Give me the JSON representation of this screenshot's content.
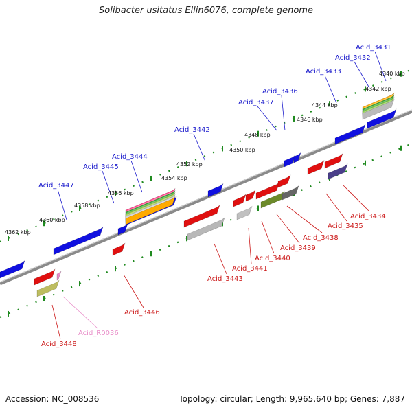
{
  "title": "Solibacter usitatus Ellin6076, complete genome",
  "footer": {
    "accession": "Accession: NC_008536",
    "topology": "Topology: circular; Length: 9,965,640 bp; Genes: 7,887"
  },
  "colors": {
    "forward_label": "#1a1acc",
    "reverse_label": "#cc1a1a",
    "rna_label": "#e88cc8",
    "forward_gene": "#1010e0",
    "reverse_gene": "#e01010",
    "backbone": "#888888",
    "tick": "#1f8a1f"
  },
  "kbp_labels": [
    "4340 kbp",
    "4342 kbp",
    "4344 kbp",
    "4346 kbp",
    "4348 kbp",
    "4350 kbp",
    "4352 kbp",
    "4354 kbp",
    "4356 kbp",
    "4358 kbp",
    "4360 kbp",
    "4362 kbp"
  ],
  "forward_genes": [
    "Acid_3431",
    "Acid_3432",
    "Acid_3433",
    "Acid_3436",
    "Acid_3437",
    "Acid_3442",
    "Acid_3444",
    "Acid_3445",
    "Acid_3447"
  ],
  "reverse_genes": [
    "Acid_3434",
    "Acid_3435",
    "Acid_3438",
    "Acid_3439",
    "Acid_3440",
    "Acid_3441",
    "Acid_3443",
    "Acid_3446",
    "Acid_3448"
  ],
  "rna_genes": [
    "Acid_R0036"
  ]
}
